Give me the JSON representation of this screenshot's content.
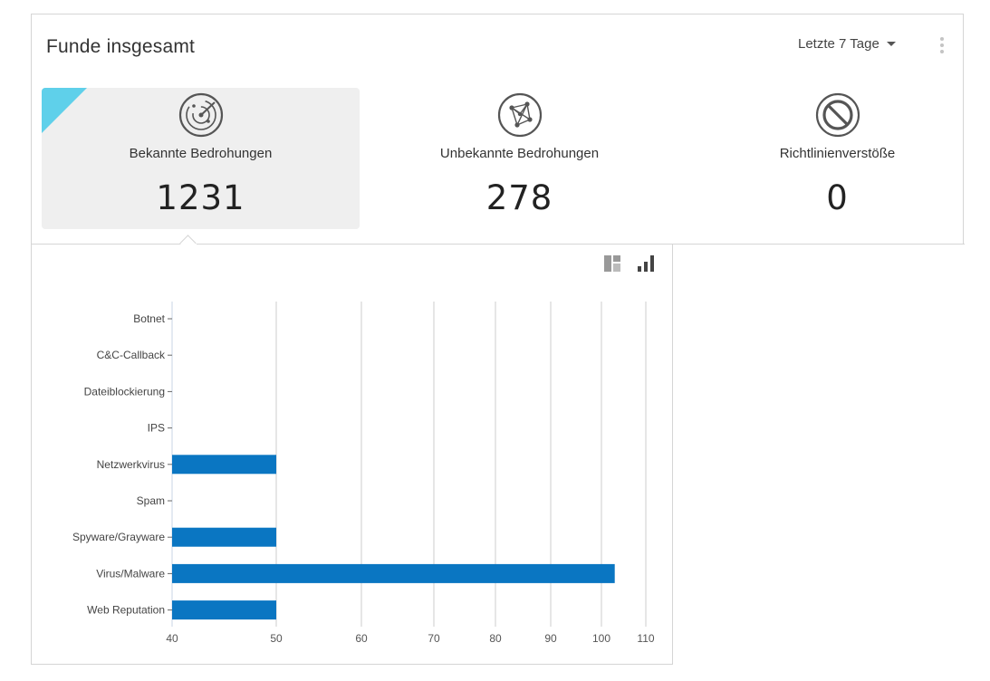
{
  "widget": {
    "title": "Funde insgesamt",
    "range_label": "Letzte 7 Tage",
    "menu_icon": "more-vertical-icon"
  },
  "cards": [
    {
      "label": "Bekannte Bedrohungen",
      "count": "1231",
      "icon": "radar-icon",
      "active": true
    },
    {
      "label": "Unbekannte Bedrohungen",
      "count": "278",
      "icon": "network-nodes-icon",
      "active": false
    },
    {
      "label": "Richtlinienverstöße",
      "count": "0",
      "icon": "prohibited-icon",
      "active": false
    }
  ],
  "view_toggle": {
    "icons": [
      "treemap-view-icon",
      "bar-chart-view-icon"
    ]
  },
  "colors": {
    "bar": "#0a76c2",
    "accent_corner": "#5fd0ea",
    "active_card_bg": "#efefef",
    "grid": "#cccccc"
  },
  "chart_data": {
    "type": "bar",
    "orientation": "horizontal",
    "categories": [
      "Botnet",
      "C&C-Callback",
      "Dateiblockierung",
      "IPS",
      "Netzwerkvirus",
      "Spam",
      "Spyware/Grayware",
      "Virus/Malware",
      "Web Reputation"
    ],
    "values": [
      null,
      null,
      null,
      null,
      50,
      null,
      50,
      103,
      50
    ],
    "xticks": [
      40,
      50,
      60,
      70,
      80,
      90,
      100,
      110
    ],
    "xlim": [
      40,
      110
    ],
    "grid": true
  }
}
